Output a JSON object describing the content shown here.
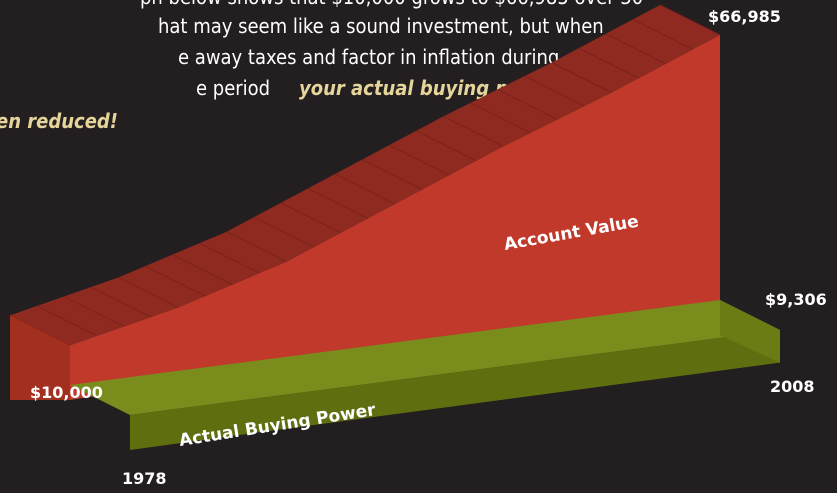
{
  "chart_data": {
    "type": "area3d",
    "intro_lines": [
      "ph below shows that $10,000 grows to $66,985 over 30",
      "hat may seem like a sound investment, but when",
      "e away taxes and factor in inflation during",
      "e period",
      "en reduced!"
    ],
    "intro_emphasis": "your actual buying power",
    "x": [
      1978,
      1983,
      1988,
      1993,
      1998,
      2003,
      2008
    ],
    "xticks": [
      1978,
      2008
    ],
    "series": [
      {
        "name": "Account Value",
        "color": "#c0392b",
        "values": [
          10000,
          16000,
          24000,
          35000,
          46000,
          56000,
          66985
        ],
        "value_labels": [
          "$10,000",
          null,
          null,
          null,
          null,
          null,
          "$66,985"
        ]
      },
      {
        "name": "Actual Buying Power",
        "color": "#7a8c1c",
        "values": [
          10000,
          9800,
          9700,
          9600,
          9500,
          9400,
          9306
        ],
        "value_labels": [
          null,
          null,
          null,
          null,
          null,
          null,
          "$9,306"
        ]
      }
    ]
  }
}
